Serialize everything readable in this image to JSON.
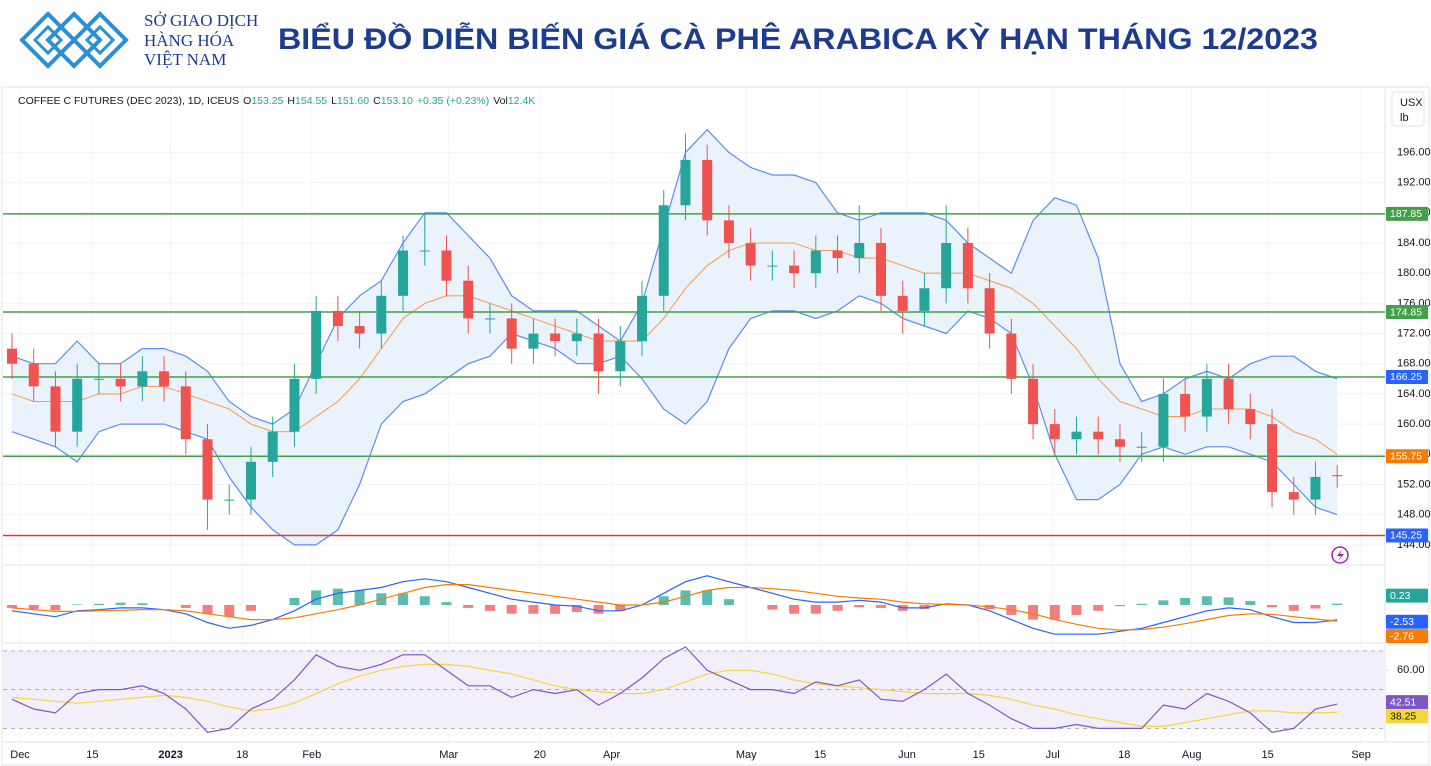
{
  "header": {
    "org": [
      "SỞ GIAO DỊCH",
      "HÀNG HÓA",
      "VIỆT NAM"
    ],
    "title": "BIỂU ĐỒ DIỄN BIẾN GIÁ CÀ PHÊ ARABICA KỲ HẠN THÁNG 12/2023"
  },
  "chart_data": [
    {
      "type": "candlestick",
      "info": {
        "symbol": "COFFEE C FUTURES (DEC 2023), 1D, ICEUS",
        "fields": [
          {
            "prefix": "O",
            "text": "153.25"
          },
          {
            "prefix": "H",
            "text": "154.55"
          },
          {
            "prefix": "L",
            "text": "151.60"
          },
          {
            "prefix": "C",
            "text": "153.10"
          },
          {
            "prefix": "",
            "text": "+0.35 (+0.23%)"
          },
          {
            "prefix": "Vol",
            "text": "12.4K"
          }
        ]
      },
      "unit": [
        "USX",
        "lb"
      ],
      "open": [
        170,
        168,
        165,
        159,
        166,
        166,
        165,
        167,
        165,
        158,
        150,
        150,
        155,
        159,
        166,
        175,
        173,
        172,
        177,
        183,
        183,
        179,
        174,
        174,
        170,
        172,
        171,
        172,
        167,
        171,
        177,
        189,
        195,
        187,
        184,
        181,
        181,
        180,
        183,
        182,
        184,
        177,
        175,
        178,
        184,
        178,
        172,
        166,
        160,
        158,
        159,
        158,
        157,
        157,
        164,
        161,
        166,
        162,
        160,
        151,
        150,
        153.25
      ],
      "high": [
        172,
        170,
        167,
        168,
        168,
        168,
        169,
        169,
        167,
        160,
        152,
        157,
        161,
        168,
        177,
        177,
        175,
        179,
        185,
        188,
        185,
        181,
        176,
        176,
        174,
        174,
        174,
        174,
        173,
        179,
        191,
        198.5,
        197,
        189,
        186,
        183,
        183,
        185,
        185,
        189,
        186,
        179,
        180,
        189,
        186,
        180,
        174,
        168,
        162,
        161,
        161,
        160,
        159,
        166,
        166,
        168,
        168,
        164,
        162,
        153,
        155,
        154.55
      ],
      "low": [
        166,
        163,
        157,
        157,
        164,
        163,
        163,
        163,
        156,
        146,
        148,
        148,
        153,
        157,
        164,
        171,
        170,
        170,
        175,
        181,
        177,
        172,
        172,
        168,
        168,
        169,
        169,
        164,
        165,
        169,
        175,
        187,
        185,
        182,
        179,
        179,
        178,
        178,
        180,
        180,
        175,
        172,
        173,
        176,
        176,
        170,
        164,
        158,
        156,
        156,
        156,
        155,
        155,
        155,
        159,
        159,
        160,
        158,
        149,
        148,
        148,
        151.6
      ],
      "close": [
        168,
        165,
        159,
        166,
        166,
        165,
        167,
        165,
        158,
        150,
        150,
        155,
        159,
        166,
        175,
        173,
        172,
        177,
        183,
        183,
        179,
        174,
        174,
        170,
        172,
        171,
        172,
        167,
        171,
        177,
        189,
        195,
        187,
        184,
        181,
        181,
        180,
        183,
        182,
        184,
        177,
        175,
        178,
        184,
        178,
        172,
        166,
        160,
        158,
        159,
        158,
        157,
        157,
        164,
        161,
        166,
        162,
        160,
        151,
        150,
        153,
        153.1
      ],
      "up_color": "#26a69a",
      "down_color": "#ef5350",
      "bands": {
        "upper": [
          169,
          168,
          168,
          171,
          168,
          168,
          170,
          170,
          169,
          167,
          163,
          161,
          160,
          162,
          168,
          174,
          177,
          179,
          184,
          188,
          188,
          185,
          182,
          177,
          175,
          175,
          175,
          173,
          171,
          176,
          186,
          196,
          199,
          196,
          194,
          193,
          193,
          192,
          188,
          187,
          188,
          188,
          188,
          187,
          184,
          182,
          180,
          187,
          190,
          189,
          182,
          168,
          163,
          164,
          166,
          167,
          166,
          168,
          169,
          169,
          167,
          166
        ],
        "middle": [
          164,
          163,
          163,
          163,
          164,
          164,
          165,
          165,
          164,
          163,
          162,
          160,
          159,
          159,
          161,
          163,
          166,
          170,
          174,
          176,
          177,
          177,
          176,
          175,
          174,
          173,
          172,
          171,
          171,
          171,
          174,
          178,
          181,
          183,
          184,
          184,
          184,
          183,
          183,
          182,
          182,
          181,
          180,
          180,
          180,
          179,
          178,
          176,
          173,
          170,
          166,
          163,
          162,
          161,
          161,
          162,
          162,
          162,
          161,
          159,
          158,
          156
        ],
        "lower": [
          159,
          158,
          157,
          155,
          159,
          160,
          160,
          160,
          159,
          158,
          153,
          149,
          146,
          144,
          144,
          146,
          152,
          160,
          163,
          164,
          166,
          168,
          169,
          172,
          171,
          170,
          168,
          168,
          169,
          166,
          162,
          160,
          163,
          170,
          174,
          175,
          175,
          174,
          175,
          177,
          176,
          174,
          173,
          172,
          175,
          174,
          172,
          165,
          156,
          150,
          150,
          152,
          156,
          157,
          156,
          157,
          157,
          156,
          155,
          152,
          149,
          148
        ],
        "line_color": "#5b8ded",
        "middle_color": "#f5a05a",
        "fill_color": "#eaf2fc"
      },
      "levels": [
        {
          "value": 187.85,
          "color": "#43a047",
          "label_color": "#43a047"
        },
        {
          "value": 174.85,
          "color": "#43a047",
          "label_color": "#43a047"
        },
        {
          "value": 166.25,
          "color": "#43a047",
          "label_color": "#2962ff"
        },
        {
          "value": 155.75,
          "color": "#43a047",
          "label_color": "#f57c00"
        },
        {
          "value": 145.25,
          "color": "#e53935",
          "label_color": "#2962ff"
        }
      ],
      "xlim": [
        0,
        63.2
      ],
      "ylim": [
        142,
        204
      ],
      "grid": true,
      "yticks": [
        {
          "value": 144,
          "label": "144.00"
        },
        {
          "value": 148,
          "label": "148.00"
        },
        {
          "value": 152,
          "label": "152.00"
        },
        {
          "value": 156,
          "label": "156.00"
        },
        {
          "value": 160,
          "label": "160.00"
        },
        {
          "value": 164,
          "label": "164.00"
        },
        {
          "value": 168,
          "label": "168.00"
        },
        {
          "value": 172,
          "label": "172.00"
        },
        {
          "value": 176,
          "label": "176.00"
        },
        {
          "value": 180,
          "label": "180.00"
        },
        {
          "value": 184,
          "label": "184.00"
        },
        {
          "value": 188,
          "label": "188.00"
        },
        {
          "value": 192,
          "label": "192.00"
        },
        {
          "value": 196,
          "label": "196.00"
        }
      ],
      "xticks": [
        {
          "value": 0.37,
          "label": "Dec"
        },
        {
          "value": 3.7,
          "label": "15"
        },
        {
          "value": 7.3,
          "label": "2023"
        },
        {
          "value": 10.6,
          "label": "18"
        },
        {
          "value": 13.8,
          "label": "Feb"
        },
        {
          "value": 20.1,
          "label": "Mar"
        },
        {
          "value": 24.3,
          "label": "20"
        },
        {
          "value": 27.6,
          "label": "Apr"
        },
        {
          "value": 33.8,
          "label": "May"
        },
        {
          "value": 37.2,
          "label": "15"
        },
        {
          "value": 41.2,
          "label": "Jun"
        },
        {
          "value": 44.5,
          "label": "15"
        },
        {
          "value": 47.9,
          "label": "Jul"
        },
        {
          "value": 51.2,
          "label": "18"
        },
        {
          "value": 54.3,
          "label": "Aug"
        },
        {
          "value": 57.8,
          "label": "15"
        },
        {
          "value": 62.1,
          "label": "Sep"
        }
      ]
    },
    {
      "type": "macd",
      "ylim": [
        -6,
        6
      ],
      "histogram": {
        "up_color": "#26a69a",
        "down_color": "#ef5350",
        "values": [
          -0.5,
          -0.7,
          -0.9,
          0.1,
          0.2,
          0.4,
          0.3,
          0,
          -0.5,
          -1.5,
          -2,
          -1,
          0,
          1.2,
          2.5,
          2.8,
          2.5,
          2,
          2,
          1.5,
          0.5,
          -0.5,
          -1,
          -1.5,
          -1.5,
          -1.5,
          -1.2,
          -1.5,
          -1,
          0,
          1.5,
          2.5,
          2.5,
          1,
          0,
          -0.8,
          -1.5,
          -1.5,
          -1,
          -0.4,
          -0.5,
          -1,
          -0.7,
          0.1,
          0,
          -0.7,
          -1.7,
          -2.5,
          -2.5,
          -1.7,
          -1,
          -0.2,
          0.2,
          0.8,
          1.2,
          1.5,
          1.3,
          0.7,
          -0.4,
          -1,
          -0.6,
          0.23
        ]
      },
      "macd": {
        "color": "#2962ff",
        "values": [
          -1,
          -1.5,
          -2,
          -1,
          -0.8,
          -0.5,
          -0.5,
          -0.8,
          -1.5,
          -3,
          -4,
          -3.5,
          -2.5,
          -1,
          1,
          2,
          2.5,
          3,
          4,
          4.5,
          4,
          3,
          2,
          1,
          0.5,
          0,
          -0.2,
          -1,
          -1,
          0,
          2,
          4,
          5,
          4,
          3,
          2,
          1,
          0.5,
          0.5,
          0.8,
          0.5,
          -0.5,
          -0.5,
          0.2,
          0,
          -1,
          -2.5,
          -4,
          -5,
          -5,
          -5,
          -4.5,
          -4,
          -3,
          -2,
          -1,
          -0.5,
          -0.8,
          -2,
          -3,
          -3,
          -2.53
        ]
      },
      "signal": {
        "color": "#f57c00",
        "values": [
          -0.5,
          -0.8,
          -1.1,
          -1.1,
          -1,
          -0.9,
          -0.8,
          -0.8,
          -1,
          -1.5,
          -2,
          -2.5,
          -2.5,
          -2.2,
          -1.5,
          -0.8,
          0,
          1,
          2,
          3,
          3.5,
          3.5,
          3,
          2.5,
          2,
          1.5,
          1,
          0.5,
          0,
          0,
          0.5,
          1.5,
          2.5,
          3,
          3,
          2.8,
          2.5,
          2,
          1.5,
          1.2,
          1,
          0.5,
          0.2,
          0.1,
          0,
          -0.3,
          -0.8,
          -1.5,
          -2.5,
          -3.3,
          -4,
          -4.3,
          -4.2,
          -3.8,
          -3.2,
          -2.5,
          -1.8,
          -1.5,
          -1.6,
          -2,
          -2.4,
          -2.76
        ]
      }
    },
    {
      "type": "rsi",
      "ylim": [
        24,
        72
      ],
      "yticks": [
        {
          "value": 60,
          "label": "60.00"
        }
      ],
      "levels": [
        70,
        50,
        30
      ],
      "band_color": "#f3effa",
      "rsi": {
        "color": "#7e57c2",
        "values": [
          45,
          40,
          38,
          48,
          50,
          50,
          52,
          48,
          40,
          28,
          30,
          40,
          45,
          55,
          68,
          62,
          60,
          63,
          68,
          68,
          60,
          52,
          52,
          46,
          50,
          48,
          50,
          42,
          48,
          56,
          66,
          72,
          60,
          55,
          50,
          50,
          48,
          54,
          52,
          55,
          45,
          44,
          50,
          58,
          48,
          42,
          35,
          30,
          30,
          32,
          30,
          30,
          30,
          42,
          40,
          48,
          44,
          38,
          28,
          30,
          40,
          42.51
        ]
      },
      "rsi_ma": {
        "color": "#f5d63d",
        "values": [
          46,
          45,
          44,
          43,
          44,
          45,
          46,
          47,
          46,
          44,
          41,
          39,
          40,
          43,
          48,
          53,
          57,
          60,
          62,
          63,
          63,
          62,
          60,
          58,
          55,
          52,
          50,
          49,
          48,
          48,
          50,
          54,
          58,
          60,
          60,
          58,
          55,
          53,
          52,
          51,
          50,
          49,
          48,
          48,
          48,
          47,
          45,
          42,
          40,
          37,
          35,
          33,
          31,
          31,
          33,
          35,
          37,
          39,
          39,
          38,
          38,
          38.25
        ]
      }
    }
  ]
}
